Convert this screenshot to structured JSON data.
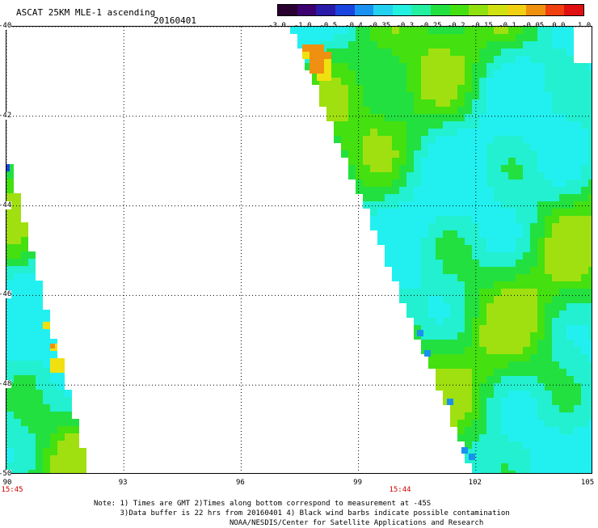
{
  "header": {
    "title": "ASCAT 25KM MLE-1 ascending",
    "date": "20160401"
  },
  "colorbar": {
    "colors": [
      "#2a0030",
      "#3c0070",
      "#2a1aa8",
      "#1a44e0",
      "#1a90f0",
      "#22d0f0",
      "#22f0e0",
      "#22f0a0",
      "#22e040",
      "#44e010",
      "#90e010",
      "#d0e010",
      "#f0d010",
      "#f09010",
      "#f04010",
      "#e01010"
    ],
    "tick_labels": [
      "-3.0",
      "-1.0",
      "-0.5",
      "-0.4",
      "-0.35",
      "-0.3",
      "-0.25",
      "-0.2",
      "-0.15",
      "-0.1",
      "-0.05",
      "0.0",
      "1.0"
    ]
  },
  "map": {
    "lon_range": [
      90,
      105
    ],
    "lat_range": [
      -50,
      -40
    ],
    "lon_ticks": [
      {
        "value": 90,
        "label": "90"
      },
      {
        "value": 93,
        "label": "93"
      },
      {
        "value": 96,
        "label": "96"
      },
      {
        "value": 99,
        "label": "99"
      },
      {
        "value": 102,
        "label": "102"
      },
      {
        "value": 105,
        "label": "105"
      }
    ],
    "lat_ticks": [
      {
        "value": -40,
        "label": "-40"
      },
      {
        "value": -42,
        "label": "-42"
      },
      {
        "value": -44,
        "label": "-44"
      },
      {
        "value": -46,
        "label": "-46"
      },
      {
        "value": -48,
        "label": "-48"
      },
      {
        "value": -50,
        "label": "-50"
      }
    ],
    "pass_times": [
      {
        "lon": 90,
        "label": "15:45"
      },
      {
        "lon": 100,
        "label": "15:44"
      }
    ],
    "colors": {
      "teal": "#22f0d0",
      "cyan": "#22f0f0",
      "green": "#22e040",
      "lime": "#44e010",
      "yellowgreen": "#a0e010",
      "yellow": "#f0e010",
      "orange": "#f09010",
      "blue": "#1a44e0",
      "skyblue": "#1a90f0"
    }
  },
  "notes": {
    "line1": "Note: 1) Times are GMT 2)Times along bottom correspond to measurement at -45S",
    "line2": "      3)Data buffer is 22 hrs from 20160401 4) Black wind barbs indicate possible contamination",
    "line3": "                               NOAA/NESDIS/Center for Satellite Applications and Research"
  }
}
